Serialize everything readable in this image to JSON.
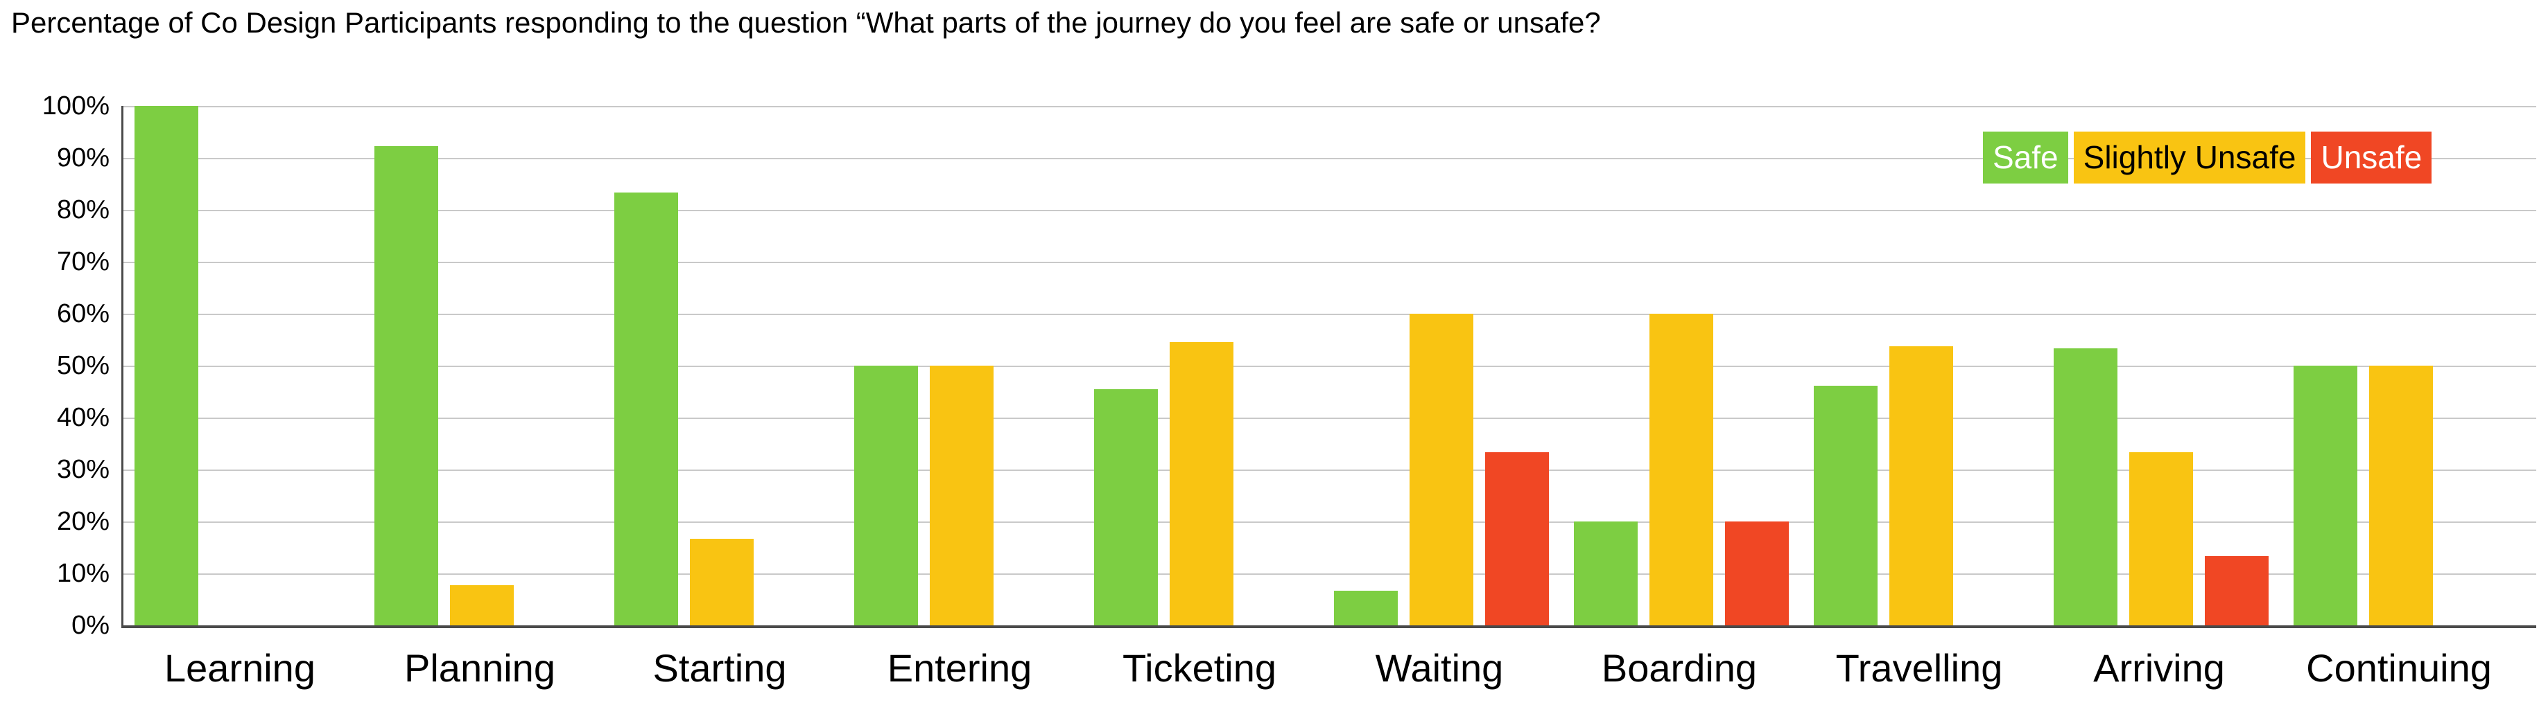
{
  "title": "Percentage of Co Design Participants responding to the question “What parts of the journey do you feel are safe or unsafe?",
  "colors": {
    "safe": "#7dce42",
    "slightly_unsafe": "#f9c412",
    "unsafe": "#f04724",
    "gridline": "#c9c9c9",
    "axis": "#4a4a4a",
    "background": "#ffffff"
  },
  "legend": [
    {
      "label": "Safe",
      "color": "#7dce42",
      "text_color": "#ffffff"
    },
    {
      "label": "Slightly Unsafe",
      "color": "#f9c412",
      "text_color": "#000000"
    },
    {
      "label": "Unsafe",
      "color": "#f04724",
      "text_color": "#ffffff"
    }
  ],
  "chart_data": {
    "type": "bar",
    "title": "Percentage of Co Design Participants responding to the question “What parts of the journey do you feel are safe or unsafe?",
    "categories": [
      "Learning",
      "Planning",
      "Starting",
      "Entering",
      "Ticketing",
      "Waiting",
      "Boarding",
      "Travelling",
      "Arriving",
      "Continuing"
    ],
    "series": [
      {
        "name": "Safe",
        "color": "#7dce42",
        "values": [
          100,
          92.3,
          83.3,
          50,
          45.5,
          6.7,
          20,
          46.2,
          53.3,
          50
        ]
      },
      {
        "name": "Slightly Unsafe",
        "color": "#f9c412",
        "values": [
          0,
          7.7,
          16.7,
          50,
          54.5,
          60,
          60,
          53.8,
          33.3,
          50
        ]
      },
      {
        "name": "Unsafe",
        "color": "#f04724",
        "values": [
          0,
          0,
          0,
          0,
          0,
          33.3,
          20,
          0,
          13.3,
          0
        ]
      }
    ],
    "xlabel": "",
    "ylabel": "",
    "ylim": [
      0,
      100
    ],
    "y_ticks": [
      "100%",
      "90%",
      "80%",
      "70%",
      "60%",
      "50%",
      "40%",
      "30%",
      "20%",
      "10%",
      "0%"
    ],
    "grid": true,
    "legend_position": "top-right"
  }
}
